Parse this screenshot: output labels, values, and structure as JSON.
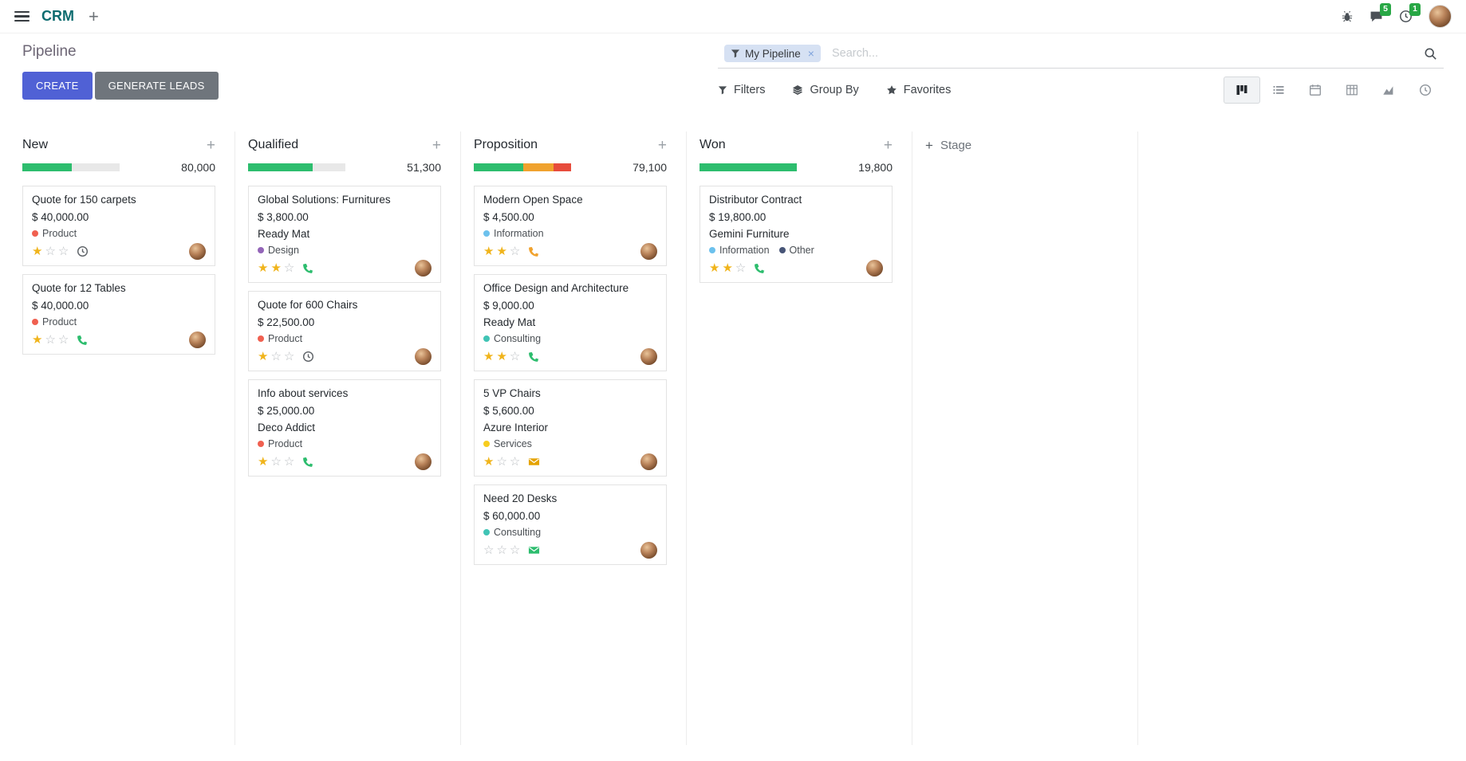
{
  "navbar": {
    "app_name": "CRM",
    "messages_badge": "5",
    "activities_badge": "1"
  },
  "control_panel": {
    "title": "Pipeline",
    "buttons": {
      "create": "CREATE",
      "generate_leads": "GENERATE LEADS"
    },
    "search": {
      "facet_label": "My Pipeline",
      "placeholder": "Search...",
      "remove_facet_glyph": "×"
    },
    "filter_menus": {
      "filters": "Filters",
      "group_by": "Group By",
      "favorites": "Favorites"
    },
    "view_switcher": [
      {
        "name": "kanban",
        "active": true
      },
      {
        "name": "list",
        "active": false
      },
      {
        "name": "calendar",
        "active": false
      },
      {
        "name": "pivot",
        "active": false
      },
      {
        "name": "graph",
        "active": false
      },
      {
        "name": "activity",
        "active": false
      }
    ]
  },
  "kanban": {
    "add_stage_label": "Stage",
    "add_stage_glyph": "+",
    "stars_per_card": 3,
    "columns": [
      {
        "title": "New",
        "total": "80,000",
        "progress": [
          {
            "color": "#2DBD6E",
            "pct": 51
          }
        ],
        "cards": [
          {
            "title": "Quote for 150 carpets",
            "amount": "$ 40,000.00",
            "partner": "",
            "tags": [
              {
                "label": "Product",
                "color": "#F06050"
              }
            ],
            "stars": 1,
            "activity": {
              "icon": "clock",
              "color": "#5c6166"
            }
          },
          {
            "title": "Quote for 12 Tables",
            "amount": "$ 40,000.00",
            "partner": "",
            "tags": [
              {
                "label": "Product",
                "color": "#F06050"
              }
            ],
            "stars": 1,
            "activity": {
              "icon": "phone",
              "color": "#2DBD6E"
            }
          }
        ]
      },
      {
        "title": "Qualified",
        "total": "51,300",
        "progress": [
          {
            "color": "#2DBD6E",
            "pct": 66
          }
        ],
        "cards": [
          {
            "title": "Global Solutions: Furnitures",
            "amount": "$ 3,800.00",
            "partner": "Ready Mat",
            "tags": [
              {
                "label": "Design",
                "color": "#9365B8"
              }
            ],
            "stars": 2,
            "activity": {
              "icon": "phone",
              "color": "#2DBD6E"
            }
          },
          {
            "title": "Quote for 600 Chairs",
            "amount": "$ 22,500.00",
            "partner": "",
            "tags": [
              {
                "label": "Product",
                "color": "#F06050"
              }
            ],
            "stars": 1,
            "activity": {
              "icon": "clock",
              "color": "#5c6166"
            }
          },
          {
            "title": "Info about services",
            "amount": "$ 25,000.00",
            "partner": "Deco Addict",
            "tags": [
              {
                "label": "Product",
                "color": "#F06050"
              }
            ],
            "stars": 1,
            "activity": {
              "icon": "phone",
              "color": "#2DBD6E"
            }
          }
        ]
      },
      {
        "title": "Proposition",
        "total": "79,100",
        "progress": [
          {
            "color": "#2DBD6E",
            "pct": 51
          },
          {
            "color": "#F0A22E",
            "pct": 31
          },
          {
            "color": "#E74C3C",
            "pct": 18
          }
        ],
        "cards": [
          {
            "title": "Modern Open Space",
            "amount": "$ 4,500.00",
            "partner": "",
            "tags": [
              {
                "label": "Information",
                "color": "#6CC1ED"
              }
            ],
            "stars": 2,
            "activity": {
              "icon": "phone",
              "color": "#F0A22E"
            }
          },
          {
            "title": "Office Design and Architecture",
            "amount": "$ 9,000.00",
            "partner": "Ready Mat",
            "tags": [
              {
                "label": "Consulting",
                "color": "#40C4B5"
              }
            ],
            "stars": 2,
            "activity": {
              "icon": "phone",
              "color": "#2DBD6E"
            }
          },
          {
            "title": "5 VP Chairs",
            "amount": "$ 5,600.00",
            "partner": "Azure Interior",
            "tags": [
              {
                "label": "Services",
                "color": "#F7CD1F"
              }
            ],
            "stars": 1,
            "activity": {
              "icon": "envelope",
              "color": "#E5A300"
            }
          },
          {
            "title": "Need 20 Desks",
            "amount": "$ 60,000.00",
            "partner": "",
            "tags": [
              {
                "label": "Consulting",
                "color": "#40C4B5"
              }
            ],
            "stars": 0,
            "activity": {
              "icon": "envelope",
              "color": "#2DBD6E"
            }
          }
        ]
      },
      {
        "title": "Won",
        "total": "19,800",
        "progress": [
          {
            "color": "#2DBD6E",
            "pct": 100
          }
        ],
        "cards": [
          {
            "title": "Distributor Contract",
            "amount": "$ 19,800.00",
            "partner": "Gemini Furniture",
            "tags": [
              {
                "label": "Information",
                "color": "#6CC1ED"
              },
              {
                "label": "Other",
                "color": "#475577"
              }
            ],
            "stars": 2,
            "activity": {
              "icon": "phone",
              "color": "#2DBD6E"
            }
          }
        ]
      }
    ]
  },
  "colors": {
    "primary_button": "#5061D5",
    "secondary_button": "#6F757C",
    "badge_green": "#28A745",
    "progress_green": "#2DBD6E",
    "progress_yellow": "#F0A22E",
    "progress_red": "#E74C3C",
    "star_gold": "#F0B41B",
    "facet_background": "#D6E1F3",
    "brand_teal": "#0E6C70"
  },
  "icons": {
    "apps-menu": "hamburger ☰",
    "plus": "+",
    "bug": "bug glyph",
    "messages": "speech bubble",
    "activities": "clock",
    "search": "magnifier",
    "filters": "funnel",
    "group-by": "layers",
    "favorites": "star ★",
    "star_filled": "★",
    "star_empty": "☆",
    "views": [
      "kanban",
      "list",
      "calendar",
      "pivot",
      "graph",
      "activity"
    ],
    "card_activities": [
      "clock",
      "phone",
      "envelope"
    ]
  }
}
